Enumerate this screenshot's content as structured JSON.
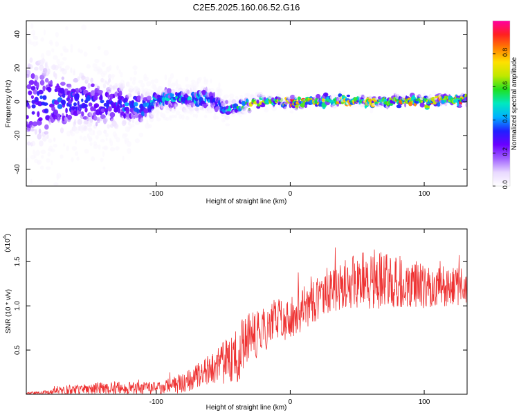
{
  "title": "C2E5.2025.160.06.52.G16",
  "chart_data": [
    {
      "type": "heatmap",
      "xlabel": "Height of straight line (km)",
      "ylabel": "Frequency (Hz)",
      "xlim": [
        -197,
        132
      ],
      "ylim": [
        -50,
        48
      ],
      "xticks": [
        -100,
        0,
        100
      ],
      "yticks": [
        -40,
        -20,
        0,
        20,
        40
      ],
      "colorbar": {
        "label": "Normalized spectral amplitude",
        "range": [
          0.0,
          1.0
        ],
        "ticks": [
          "0.0",
          "0.2",
          "0.4",
          "0.6",
          "0.8"
        ],
        "colors": [
          "#ffffff",
          "#e8d8ff",
          "#a060ff",
          "#6a00ff",
          "#2020ff",
          "#00b0ff",
          "#00e8c0",
          "#20e020",
          "#c0e800",
          "#ffe000",
          "#ff8000",
          "#ff2020",
          "#ff00a0"
        ]
      },
      "profile": {
        "x": [
          -197,
          -180,
          -160,
          -140,
          -120,
          -110,
          -100,
          -80,
          -60,
          -50,
          -40,
          -30,
          -20,
          0,
          20,
          40,
          60,
          80,
          100,
          120,
          132
        ],
        "center_hz": [
          0,
          0,
          0,
          -1,
          -2,
          -4,
          1,
          2,
          2,
          -4,
          -3,
          0,
          0,
          0,
          0,
          1,
          0,
          1,
          0,
          1,
          1
        ],
        "spread_hz": [
          30,
          22,
          16,
          14,
          10,
          8,
          5,
          5,
          5,
          4,
          3,
          2,
          2,
          1.5,
          1.2,
          1.5,
          1.5,
          1.5,
          1.5,
          1.5,
          1.5
        ],
        "peak_amplitude": [
          0.3,
          0.35,
          0.35,
          0.35,
          0.4,
          0.45,
          0.5,
          0.5,
          0.45,
          0.45,
          0.55,
          0.75,
          0.8,
          0.85,
          0.9,
          0.85,
          0.85,
          0.85,
          0.85,
          0.85,
          0.85
        ]
      }
    },
    {
      "type": "line",
      "xlabel": "Height of straight line (km)",
      "ylabel": "SNR (10 * v/v)",
      "multiplier": "(x10",
      "multiplier_exp": "4",
      "xlim": [
        -197,
        132
      ],
      "ylim": [
        0,
        1.87
      ],
      "xticks": [
        -100,
        0,
        100
      ],
      "yticks": [
        "0.5",
        "1.0",
        "1.5"
      ],
      "color": "#ee3333",
      "envelope": {
        "x": [
          -197,
          -180,
          -165,
          -150,
          -130,
          -110,
          -95,
          -80,
          -65,
          -55,
          -45,
          -37,
          -30,
          -20,
          -10,
          0,
          10,
          20,
          30,
          40,
          60,
          80,
          100,
          120,
          132
        ],
        "mean": [
          0.01,
          0.02,
          0.04,
          0.05,
          0.06,
          0.06,
          0.07,
          0.12,
          0.22,
          0.3,
          0.35,
          0.45,
          0.6,
          0.7,
          0.8,
          0.85,
          0.95,
          1.05,
          1.12,
          1.22,
          1.27,
          1.25,
          1.2,
          1.2,
          1.2
        ],
        "amplitude": [
          0.01,
          0.03,
          0.06,
          0.07,
          0.08,
          0.07,
          0.08,
          0.12,
          0.16,
          0.2,
          0.28,
          0.35,
          0.3,
          0.25,
          0.25,
          0.25,
          0.25,
          0.25,
          0.25,
          0.28,
          0.35,
          0.3,
          0.25,
          0.22,
          0.22
        ]
      }
    }
  ]
}
